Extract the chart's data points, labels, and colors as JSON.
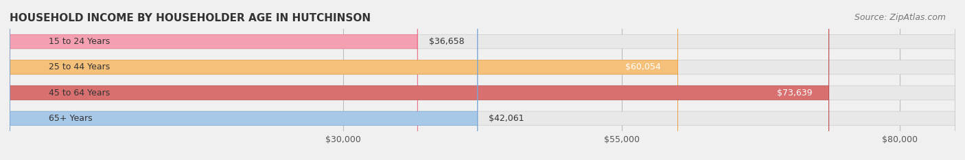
{
  "title": "HOUSEHOLD INCOME BY HOUSEHOLDER AGE IN HUTCHINSON",
  "source": "Source: ZipAtlas.com",
  "categories": [
    "15 to 24 Years",
    "25 to 44 Years",
    "45 to 64 Years",
    "65+ Years"
  ],
  "values": [
    36658,
    60054,
    73639,
    42061
  ],
  "bar_colors": [
    "#f4a0b0",
    "#f5c07a",
    "#d97070",
    "#a8c8e8"
  ],
  "bar_edge_colors": [
    "#e8708a",
    "#e8a040",
    "#c05050",
    "#78a8d8"
  ],
  "label_colors": [
    "#333333",
    "#ffffff",
    "#ffffff",
    "#333333"
  ],
  "value_labels": [
    "$36,658",
    "$60,054",
    "$73,639",
    "$42,061"
  ],
  "x_ticks": [
    30000,
    55000,
    80000
  ],
  "x_tick_labels": [
    "$30,000",
    "$55,000",
    "$80,000"
  ],
  "xlim": [
    0,
    85000
  ],
  "background_color": "#f0f0f0",
  "bar_bg_color": "#e8e8e8",
  "title_fontsize": 11,
  "source_fontsize": 9,
  "label_fontsize": 9,
  "value_fontsize": 9,
  "tick_fontsize": 9,
  "bar_height": 0.55
}
